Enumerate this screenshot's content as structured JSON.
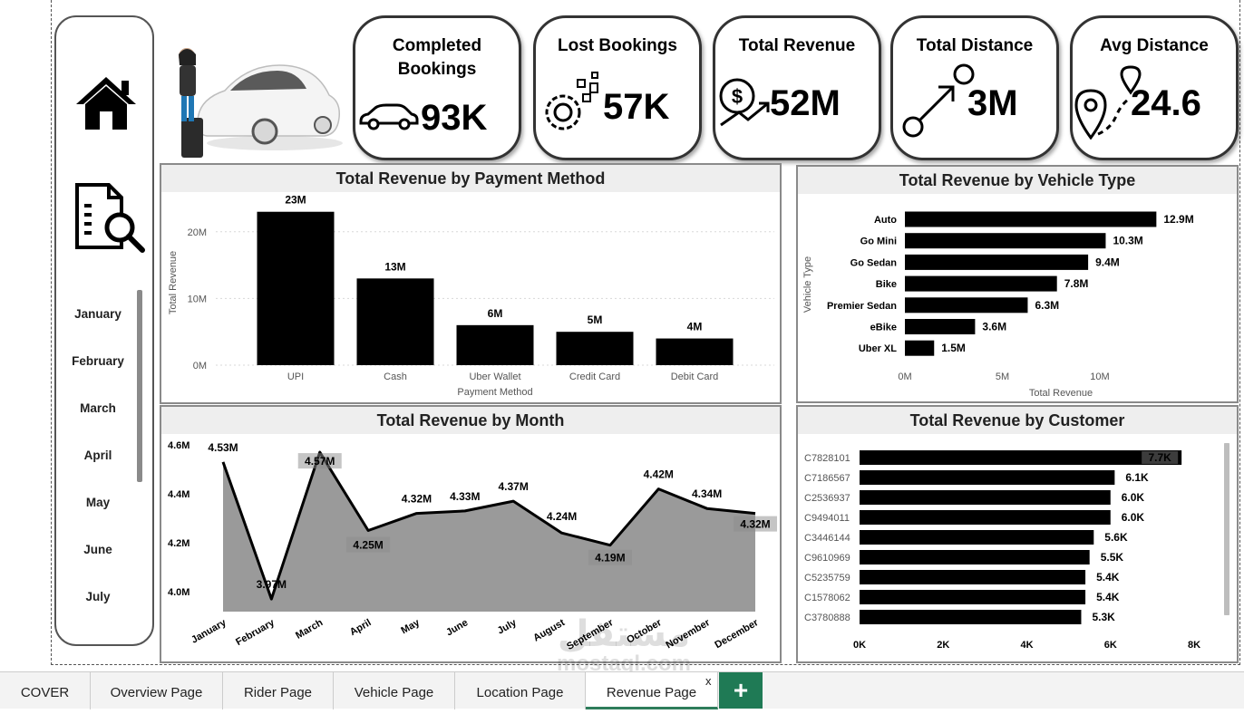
{
  "kpis": [
    {
      "title": "Completed Bookings",
      "value": "93K",
      "icon": "car-icon"
    },
    {
      "title": "Lost Bookings",
      "value": "57K",
      "icon": "gears-icon"
    },
    {
      "title": "Total Revenue",
      "value": "52M",
      "icon": "revenue-growth-icon"
    },
    {
      "title": "Total Distance",
      "value": "3M",
      "icon": "route-arrow-icon"
    },
    {
      "title": "Avg Distance",
      "value": "24.6",
      "icon": "map-pin-route-icon"
    }
  ],
  "sidebar": {
    "icons": [
      "home-icon",
      "report-search-icon"
    ],
    "months": [
      "January",
      "February",
      "March",
      "April",
      "May",
      "June",
      "July"
    ]
  },
  "tabs": [
    {
      "label": "COVER"
    },
    {
      "label": "Overview Page"
    },
    {
      "label": "Rider Page"
    },
    {
      "label": "Vehicle Page"
    },
    {
      "label": "Location Page"
    },
    {
      "label": "Revenue Page"
    }
  ],
  "active_tab": "Revenue Page",
  "tab_close": "x",
  "add_tab": "+",
  "watermark": {
    "text": "مستقل",
    "sub": "mostaql.com"
  },
  "chart_data": [
    {
      "type": "bar",
      "title": "Total Revenue by Payment Method",
      "xlabel": "Payment Method",
      "ylabel": "Total Revenue",
      "categories": [
        "UPI",
        "Cash",
        "Uber Wallet",
        "Credit Card",
        "Debit Card"
      ],
      "values": [
        23,
        13,
        6,
        5,
        4
      ],
      "data_labels": [
        "23M",
        "13M",
        "6M",
        "5M",
        "4M"
      ],
      "ylim": [
        0,
        25
      ],
      "yticks": [
        0,
        10,
        20
      ],
      "ytick_labels": [
        "0M",
        "10M",
        "20M"
      ],
      "grid": true
    },
    {
      "type": "bar",
      "orientation": "horizontal",
      "title": "Total Revenue by Vehicle Type",
      "xlabel": "Total Revenue",
      "ylabel": "Vehicle Type",
      "categories": [
        "Auto",
        "Go Mini",
        "Go Sedan",
        "Bike",
        "Premier Sedan",
        "eBike",
        "Uber XL"
      ],
      "values": [
        12.9,
        10.3,
        9.4,
        7.8,
        6.3,
        3.6,
        1.5
      ],
      "data_labels": [
        "12.9M",
        "10.3M",
        "9.4M",
        "7.8M",
        "6.3M",
        "3.6M",
        "1.5M"
      ],
      "xlim": [
        0,
        15
      ],
      "xticks": [
        0,
        5,
        10
      ],
      "xtick_labels": [
        "0M",
        "5M",
        "10M"
      ]
    },
    {
      "type": "area",
      "title": "Total Revenue by Month",
      "categories": [
        "January",
        "February",
        "March",
        "April",
        "May",
        "June",
        "July",
        "August",
        "September",
        "October",
        "November",
        "December"
      ],
      "values": [
        4.53,
        3.97,
        4.57,
        4.25,
        4.32,
        4.33,
        4.37,
        4.24,
        4.19,
        4.42,
        4.34,
        4.32
      ],
      "data_labels": [
        "4.53M",
        "3.97M",
        "4.57M",
        "4.25M",
        "4.32M",
        "4.33M",
        "4.37M",
        "4.24M",
        "4.19M",
        "4.42M",
        "4.34M",
        "4.32M"
      ],
      "ylim": [
        3.9,
        4.65
      ],
      "yticks": [
        4.0,
        4.2,
        4.4,
        4.6
      ],
      "ytick_labels": [
        "4.0M",
        "4.2M",
        "4.4M",
        "4.6M"
      ]
    },
    {
      "type": "bar",
      "orientation": "horizontal",
      "title": "Total Revenue by Customer",
      "categories": [
        "C7828101",
        "C7186567",
        "C2536937",
        "C9494011",
        "C3446144",
        "C9610969",
        "C5235759",
        "C1578062",
        "C3780888"
      ],
      "values": [
        7.7,
        6.1,
        6.0,
        6.0,
        5.6,
        5.5,
        5.4,
        5.4,
        5.3
      ],
      "data_labels": [
        "7.7K",
        "6.1K",
        "6.0K",
        "6.0K",
        "5.6K",
        "5.5K",
        "5.4K",
        "5.4K",
        "5.3K"
      ],
      "xlim": [
        0,
        8
      ],
      "xticks": [
        0,
        2,
        4,
        6,
        8
      ],
      "xtick_labels": [
        "0K",
        "2K",
        "4K",
        "6K",
        "8K"
      ]
    }
  ]
}
